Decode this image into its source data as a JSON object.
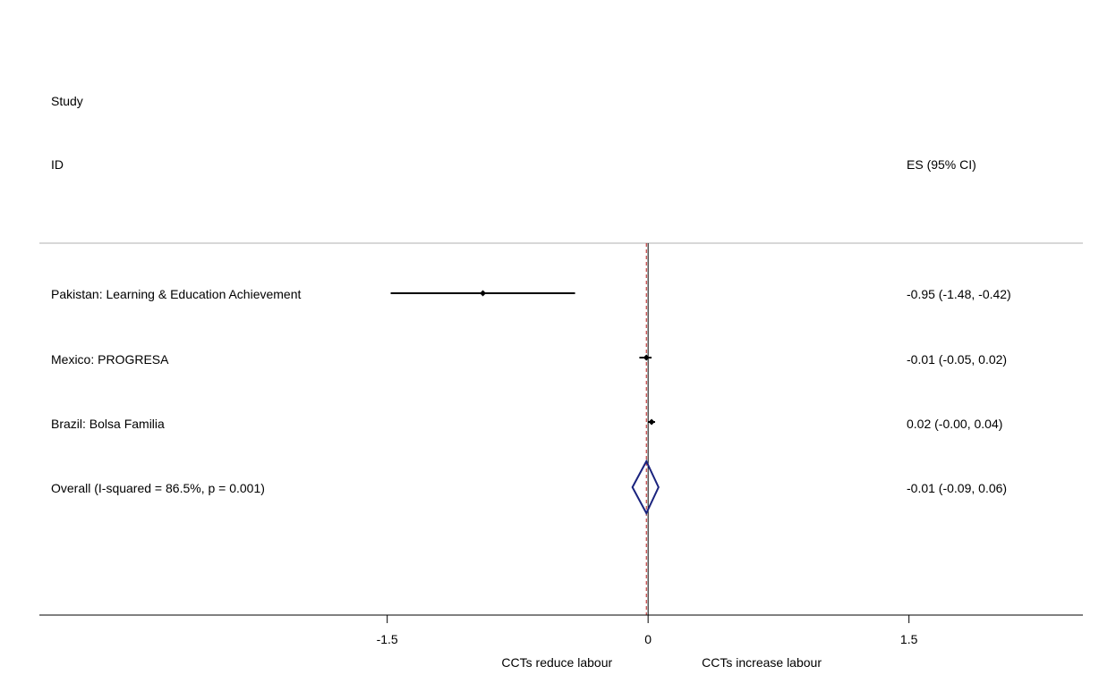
{
  "chart_data": {
    "type": "forest",
    "header": {
      "study_line1": "Study",
      "study_line2": "ID",
      "es_header": "ES (95% CI)"
    },
    "studies": [
      {
        "label": "Pakistan: Learning & Education Achievement",
        "es": -0.95,
        "lo": -1.48,
        "hi": -0.42,
        "text": "-0.95 (-1.48, -0.42)"
      },
      {
        "label": "Mexico: PROGRESA",
        "es": -0.01,
        "lo": -0.05,
        "hi": 0.02,
        "text": "-0.01 (-0.05, 0.02)"
      },
      {
        "label": "Brazil: Bolsa Familia",
        "es": 0.02,
        "lo": -0.0,
        "hi": 0.04,
        "text": "0.02 (-0.00, 0.04)"
      }
    ],
    "overall": {
      "label": "Overall  (I-squared = 86.5%, p = 0.001)",
      "es": -0.01,
      "lo": -0.09,
      "hi": 0.06,
      "text": "-0.01 (-0.09, 0.06)"
    },
    "x_ticks": [
      {
        "value": -1.5,
        "label": "-1.5"
      },
      {
        "value": 0,
        "label": "0"
      },
      {
        "value": 1.5,
        "label": "1.5"
      }
    ],
    "xlim": [
      -3.5,
      2.5
    ],
    "left_caption": "CCTs reduce labour",
    "right_caption": "CCTs increase labour",
    "colors": {
      "study": "#000000",
      "overall_diamond": "#1a237e",
      "overall_line": "#b71c1c",
      "null_line": "#000000",
      "separator": "#b0b0b0"
    }
  }
}
